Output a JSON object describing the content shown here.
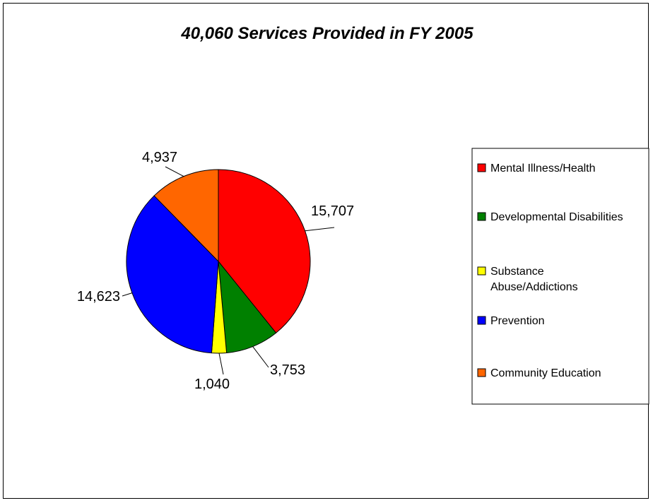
{
  "chart_data": {
    "type": "pie",
    "title": "40,060 Services Provided in FY 2005",
    "legend_position": "right",
    "slices": [
      {
        "name": "Mental Illness/Health",
        "value": 15707,
        "label": "15,707",
        "color": "#ff0000",
        "legend_lines": [
          "Mental Illness/Health"
        ]
      },
      {
        "name": "Developmental Disabilities",
        "value": 3753,
        "label": "3,753",
        "color": "#008000",
        "legend_lines": [
          "Developmental Disabilities"
        ]
      },
      {
        "name": "Substance Abuse/Addictions",
        "value": 1040,
        "label": "1,040",
        "color": "#ffff00",
        "legend_lines": [
          "Substance",
          "Abuse/Addictions"
        ]
      },
      {
        "name": "Prevention",
        "value": 14623,
        "label": "14,623",
        "color": "#0000ff",
        "legend_lines": [
          "Prevention"
        ]
      },
      {
        "name": "Community Education",
        "value": 4937,
        "label": "4,937",
        "color": "#ff6600",
        "legend_lines": [
          "Community Education"
        ]
      }
    ]
  }
}
